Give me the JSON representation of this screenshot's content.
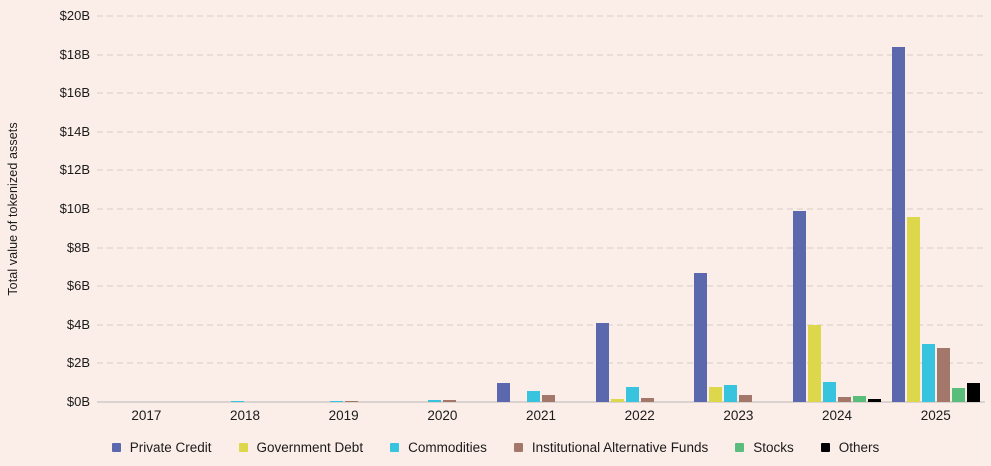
{
  "chart_data": {
    "type": "bar",
    "title": "",
    "xlabel": "",
    "ylabel": "Total value of tokenized assets",
    "ylim": [
      0,
      20
    ],
    "y_tick_values": [
      0,
      2,
      4,
      6,
      8,
      10,
      12,
      14,
      16,
      18,
      20
    ],
    "y_tick_labels": [
      "$0B",
      "$2B",
      "$4B",
      "$6B",
      "$8B",
      "$10B",
      "$12B",
      "$14B",
      "$16B",
      "$18B",
      "$20B"
    ],
    "categories": [
      "2017",
      "2018",
      "2019",
      "2020",
      "2021",
      "2022",
      "2023",
      "2024",
      "2025"
    ],
    "series": [
      {
        "name": "Private Credit",
        "color": "#5C68AE",
        "values": [
          0,
          0,
          0,
          0,
          1.0,
          4.1,
          6.7,
          9.9,
          18.4
        ]
      },
      {
        "name": "Government Debt",
        "color": "#DDD74B",
        "values": [
          0,
          0,
          0,
          0,
          0,
          0.15,
          0.8,
          4.0,
          9.6
        ]
      },
      {
        "name": "Commodities",
        "color": "#38C3DF",
        "values": [
          0,
          0.03,
          0.04,
          0.1,
          0.55,
          0.8,
          0.9,
          1.05,
          3.0
        ]
      },
      {
        "name": "Institutional Alternative Funds",
        "color": "#A3776A",
        "values": [
          0,
          0,
          0.03,
          0.12,
          0.35,
          0.2,
          0.35,
          0.25,
          2.8
        ]
      },
      {
        "name": "Stocks",
        "color": "#5ABD7C",
        "values": [
          0,
          0,
          0,
          0,
          0,
          0,
          0,
          0.3,
          0.75
        ]
      },
      {
        "name": "Others",
        "color": "#000000",
        "values": [
          0,
          0,
          0,
          0,
          0,
          0,
          0,
          0.15,
          1.0
        ]
      }
    ],
    "legend_position": "bottom",
    "grid": "horizontal-dashed",
    "colors": {
      "background": "#FBEDE7",
      "gridline": "#E9DDD8",
      "baseline": "#D9D2CE",
      "text": "#1b1b1b"
    }
  }
}
